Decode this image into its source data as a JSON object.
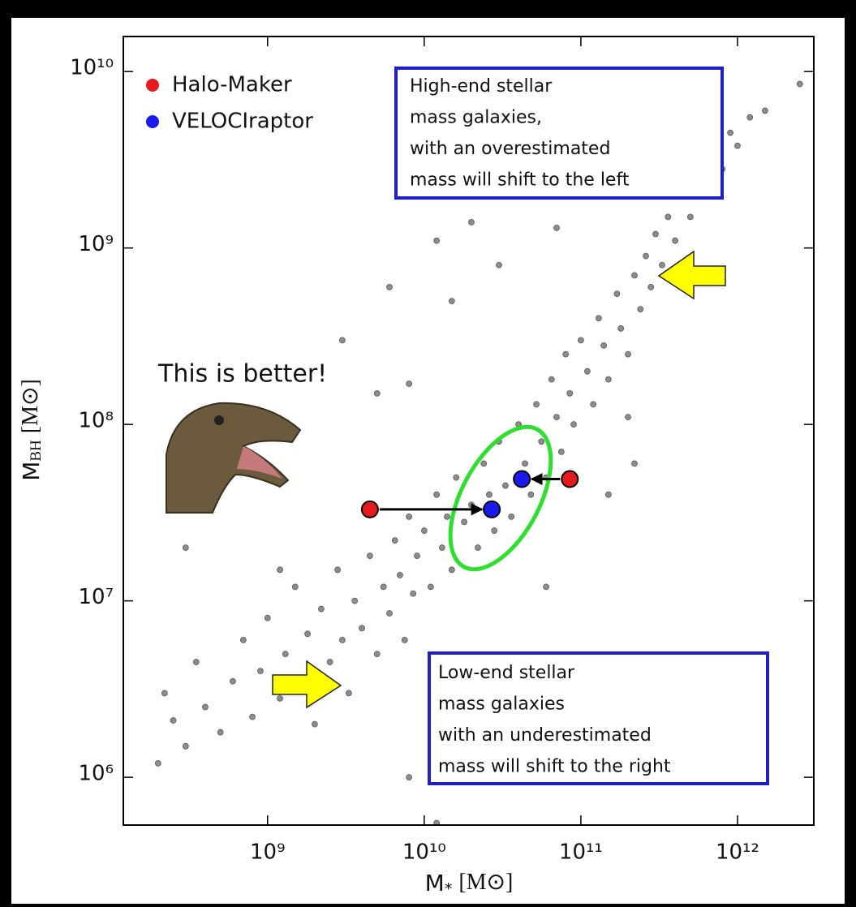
{
  "chart_data": {
    "type": "scatter",
    "x_label": {
      "symbol": "M",
      "subscript": "*",
      "unit": "[M⊙]"
    },
    "y_label": {
      "symbol": "M",
      "subscript": "BH",
      "unit": "[M⊙]"
    },
    "xscale": "log",
    "yscale": "log",
    "xlim": [
      120000000.0,
      3070000000000.0
    ],
    "ylim": [
      536000.0,
      15800000000.0
    ],
    "xticks": [
      {
        "value": 1000000000.0,
        "label": "10⁹"
      },
      {
        "value": 10000000000.0,
        "label": "10¹⁰"
      },
      {
        "value": 100000000000.0,
        "label": "10¹¹"
      },
      {
        "value": 1000000000000.0,
        "label": "10¹²"
      }
    ],
    "yticks": [
      {
        "value": 1000000.0,
        "label": "10⁶"
      },
      {
        "value": 10000000.0,
        "label": "10⁷"
      },
      {
        "value": 100000000.0,
        "label": "10⁸"
      },
      {
        "value": 1000000000.0,
        "label": "10⁹"
      },
      {
        "value": 10000000000.0,
        "label": "10¹⁰"
      }
    ],
    "legend": "upper left",
    "points": {
      "color": "#8c8c8c",
      "x": [
        200000000.0,
        250000000.0,
        300000000.0,
        220000000.0,
        350000000.0,
        400000000.0,
        500000000.0,
        600000000.0,
        700000000.0,
        800000000.0,
        900000000.0,
        1000000000.0,
        1200000000.0,
        1300000000.0,
        1500000000.0,
        1600000000.0,
        1800000000.0,
        2000000000.0,
        2200000000.0,
        2500000000.0,
        2800000000.0,
        3000000000.0,
        3300000000.0,
        3600000000.0,
        4000000000.0,
        4500000000.0,
        5000000000.0,
        5500000000.0,
        6000000000.0,
        6500000000.0,
        7000000000.0,
        7500000000.0,
        8000000000.0,
        8500000000.0,
        9000000000.0,
        10000000000.0,
        11000000000.0,
        12000000000.0,
        13000000000.0,
        14000000000.0,
        15000000000.0,
        16000000000.0,
        18000000000.0,
        20000000000.0,
        22000000000.0,
        24000000000.0,
        26000000000.0,
        28000000000.0,
        30000000000.0,
        33000000000.0,
        36000000000.0,
        40000000000.0,
        44000000000.0,
        48000000000.0,
        52000000000.0,
        56000000000.0,
        60000000000.0,
        65000000000.0,
        70000000000.0,
        75000000000.0,
        80000000000.0,
        85000000000.0,
        90000000000.0,
        100000000000.0,
        110000000000.0,
        120000000000.0,
        130000000000.0,
        140000000000.0,
        150000000000.0,
        170000000000.0,
        180000000000.0,
        200000000000.0,
        220000000000.0,
        240000000000.0,
        260000000000.0,
        280000000000.0,
        300000000000.0,
        330000000000.0,
        360000000000.0,
        400000000000.0,
        450000000000.0,
        500000000000.0,
        550000000000.0,
        600000000000.0,
        700000000000.0,
        800000000000.0,
        900000000000.0,
        1000000000000.0,
        1200000000000.0,
        1500000000000.0,
        2500000000000.0,
        5000000000.0,
        3000000000.0,
        12000000000.0,
        20000000000.0,
        6000000000.0,
        8000000000.0,
        15000000000.0,
        30000000000.0,
        70000000000.0,
        40000000000.0,
        60000000000.0,
        150000000000.0,
        220000000000.0,
        200000000000.0,
        12000000000.0,
        8000000000.0,
        300000000.0,
        1200000000.0
      ],
      "y": [
        1200000.0,
        2100000.0,
        1500000.0,
        3000000.0,
        4500000.0,
        2500000.0,
        1800000.0,
        3500000.0,
        6000000.0,
        2200000.0,
        4000000.0,
        8000000.0,
        2800000.0,
        5000000.0,
        12000000.0,
        3500000.0,
        6500000.0,
        2000000.0,
        9000000.0,
        4500000.0,
        15000000.0,
        6000000.0,
        3000000.0,
        10000000.0,
        7000000.0,
        18000000.0,
        5000000.0,
        12000000.0,
        8500000.0,
        22000000.0,
        14000000.0,
        6000000.0,
        30000000.0,
        11000000.0,
        18000000.0,
        25000000.0,
        12000000.0,
        40000000.0,
        20000000.0,
        30000000.0,
        15000000.0,
        50000000.0,
        28000000.0,
        35000000.0,
        20000000.0,
        60000000.0,
        40000000.0,
        25000000.0,
        80000000.0,
        45000000.0,
        30000000.0,
        100000000.0,
        60000000.0,
        40000000.0,
        130000000.0,
        80000000.0,
        50000000.0,
        180000000.0,
        110000000.0,
        70000000.0,
        250000000.0,
        150000000.0,
        100000000.0,
        300000000.0,
        200000000.0,
        130000000.0,
        400000000.0,
        280000000.0,
        180000000.0,
        550000000.0,
        350000000.0,
        250000000.0,
        700000000.0,
        450000000.0,
        900000000.0,
        600000000.0,
        1200000000.0,
        800000000.0,
        1500000000.0,
        1100000000.0,
        2000000000.0,
        1500000000.0,
        2600000000.0,
        2000000000.0,
        3500000000.0,
        2800000000.0,
        4500000000.0,
        3800000000.0,
        5500000000.0,
        6000000000.0,
        8500000000.0,
        150000000.0,
        300000000.0,
        1100000000.0,
        1400000000.0,
        600000000.0,
        170000000.0,
        500000000.0,
        800000000.0,
        1300000000.0,
        4000000.0,
        12000000.0,
        40000000.0,
        60000000.0,
        110000000.0,
        550000.0,
        1000000.0,
        20000000.0,
        15000000.0
      ]
    },
    "series": [
      {
        "name": "Halo-Maker",
        "color": "#e41a1c",
        "x": [
          4500000000.0,
          85000000000.0
        ],
        "y": [
          33000000.0,
          49000000.0
        ]
      },
      {
        "name": "VELOCIraptor",
        "color": "#1a1aee",
        "x": [
          27000000000.0,
          42000000000.0
        ],
        "y": [
          33000000.0,
          49000000.0
        ]
      }
    ],
    "annotations": {
      "top_box": [
        "High-end stellar",
        "mass galaxies,",
        "with an overestimated",
        "mass will shift to the left"
      ],
      "bottom_box": [
        "Low-end stellar",
        "mass galaxies",
        "with an underestimated",
        "mass will shift to the right"
      ],
      "callout": "This is better!"
    }
  }
}
